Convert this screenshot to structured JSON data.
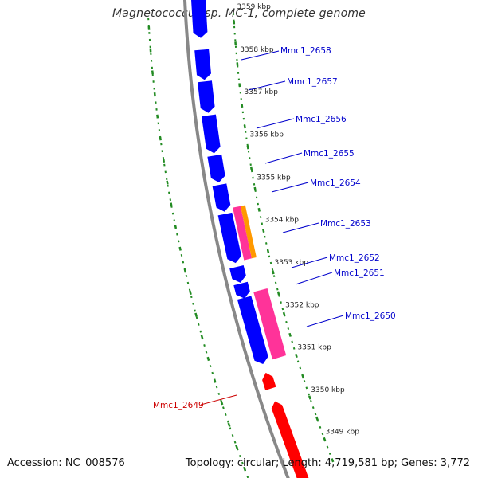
{
  "title": "Magnetococcus sp. MC-1, complete genome",
  "footer": {
    "accession": "Accession: NC_008576",
    "summary": "Topology: circular; Length: 4,719,581 bp; Genes: 3,772"
  },
  "colors": {
    "forward_cds": "#0000ff",
    "reverse_cds": "#ff0000",
    "other_feature_a": "#ff3399",
    "other_feature_b": "#ff9900",
    "backbone": "#888888",
    "tick_track": "#228b22",
    "label_forward": "#0000cc",
    "label_reverse": "#cc0000",
    "kbp_label": "#222222"
  },
  "kbp_ticks": [
    {
      "label": "3359 kbp"
    },
    {
      "label": "3358 kbp"
    },
    {
      "label": "3357 kbp"
    },
    {
      "label": "3356 kbp"
    },
    {
      "label": "3355 kbp"
    },
    {
      "label": "3354 kbp"
    },
    {
      "label": "3353 kbp"
    },
    {
      "label": "3352 kbp"
    },
    {
      "label": "3351 kbp"
    },
    {
      "label": "3350 kbp"
    },
    {
      "label": "3349 kbp"
    }
  ],
  "genes": [
    {
      "label": "Mmc1_2658",
      "strand": "forward"
    },
    {
      "label": "Mmc1_2657",
      "strand": "forward"
    },
    {
      "label": "Mmc1_2656",
      "strand": "forward"
    },
    {
      "label": "Mmc1_2655",
      "strand": "forward"
    },
    {
      "label": "Mmc1_2654",
      "strand": "forward"
    },
    {
      "label": "Mmc1_2653",
      "strand": "forward"
    },
    {
      "label": "Mmc1_2652",
      "strand": "forward"
    },
    {
      "label": "Mmc1_2651",
      "strand": "forward"
    },
    {
      "label": "Mmc1_2650",
      "strand": "forward"
    },
    {
      "label": "Mmc1_2649",
      "strand": "reverse"
    }
  ]
}
